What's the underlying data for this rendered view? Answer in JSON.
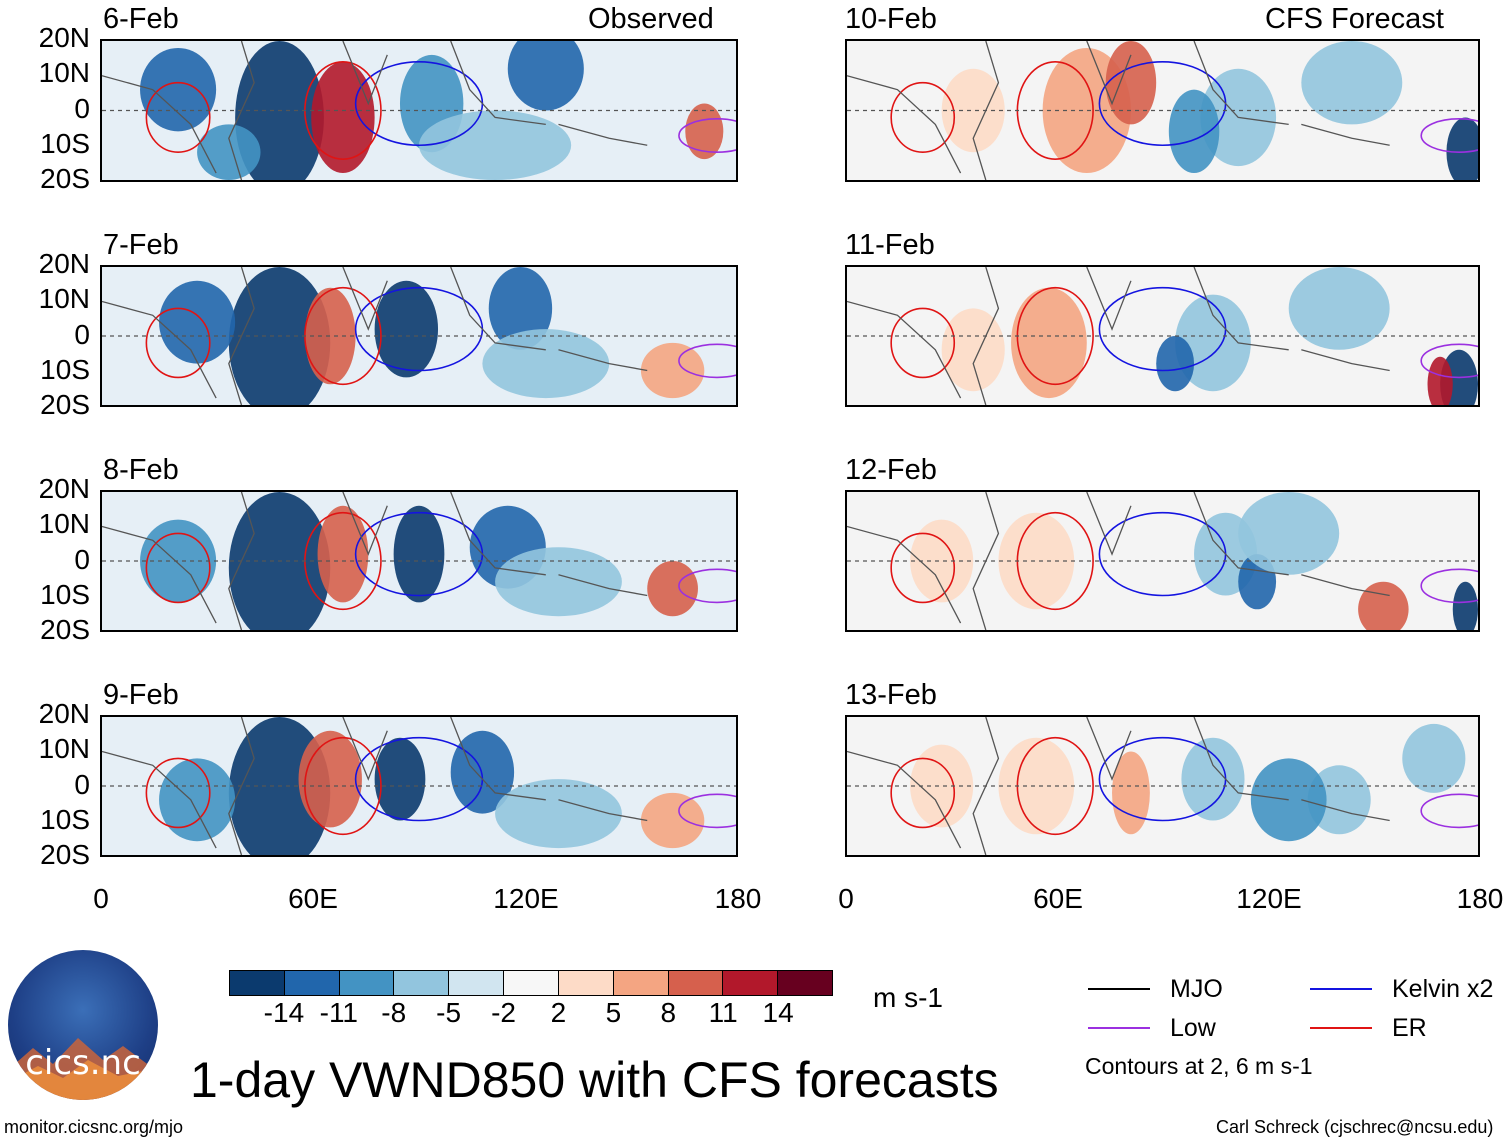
{
  "panels": [
    {
      "id": "p1",
      "date": "6-Feb",
      "tag": "Observed"
    },
    {
      "id": "p2",
      "date": "7-Feb",
      "tag": ""
    },
    {
      "id": "p3",
      "date": "8-Feb",
      "tag": ""
    },
    {
      "id": "p4",
      "date": "9-Feb",
      "tag": ""
    },
    {
      "id": "p5",
      "date": "10-Feb",
      "tag": "CFS Forecast"
    },
    {
      "id": "p6",
      "date": "11-Feb",
      "tag": ""
    },
    {
      "id": "p7",
      "date": "12-Feb",
      "tag": ""
    },
    {
      "id": "p8",
      "date": "13-Feb",
      "tag": ""
    }
  ],
  "lat_labels": [
    "20N",
    "10N",
    "0",
    "10S",
    "20S"
  ],
  "lon_labels": [
    "0",
    "60E",
    "120E",
    "180"
  ],
  "colorbar": {
    "ticks": [
      "-14",
      "-11",
      "-8",
      "-5",
      "-2",
      "2",
      "5",
      "8",
      "11",
      "14"
    ],
    "colors": [
      "#0b3a6e",
      "#2166ac",
      "#4393c3",
      "#92c5de",
      "#d1e5f0",
      "#f7f7f7",
      "#fddbc7",
      "#f4a582",
      "#d6604d",
      "#b2182b",
      "#67001f"
    ],
    "units": "m s-1"
  },
  "title": "1-day VWND850 with CFS forecasts",
  "legend": {
    "items": [
      {
        "label": "MJO",
        "color": "#000000"
      },
      {
        "label": "Kelvin x2",
        "color": "#1414e0"
      },
      {
        "label": "Low",
        "color": "#9b30e0"
      },
      {
        "label": "ER",
        "color": "#e01414"
      }
    ],
    "note": "Contours at 2, 6 m s-1"
  },
  "logo_text": "cics.nc",
  "footer": {
    "left": "monitor.cicsnc.org/mjo",
    "right": "Carl Schreck (cjschrec@ncsu.edu)"
  }
}
